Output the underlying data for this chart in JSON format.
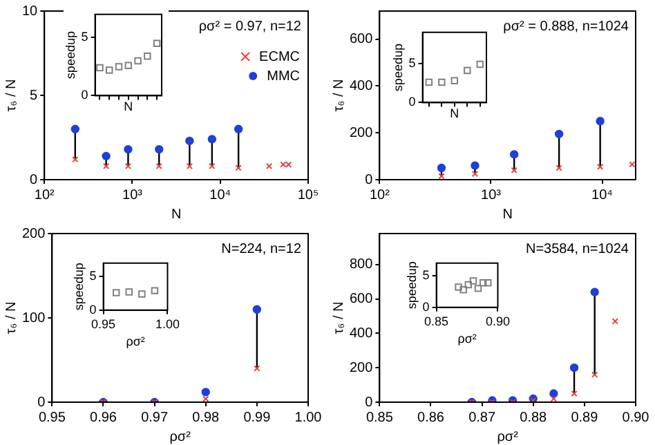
{
  "chart_data": [
    {
      "type": "scatter",
      "xlabel": "N",
      "ylabel": "τ₆ / N",
      "log": "x",
      "xlim": [
        100,
        100000
      ],
      "xticks": [
        {
          "value": 100,
          "label": "10²"
        },
        {
          "value": 1000,
          "label": "10³"
        },
        {
          "value": 10000,
          "label": "10⁴"
        },
        {
          "value": 100000,
          "label": "10⁵"
        }
      ],
      "ylim": [
        0,
        10
      ],
      "yticks": [
        0,
        5,
        10
      ],
      "annotations": [
        "ρσ² = 0.97, n=12"
      ],
      "legend": "top right",
      "series": [
        {
          "name": "ECMC",
          "color": "#e8403c",
          "marker": "cross",
          "x": [
            224,
            504,
            896,
            2016,
            4480,
            8064,
            16128,
            36000,
            52000,
            60000
          ],
          "values": [
            1.2,
            0.8,
            0.8,
            0.8,
            0.8,
            0.8,
            0.7,
            0.8,
            0.9,
            0.9
          ]
        },
        {
          "name": "MMC",
          "color": "#1f3fd8",
          "marker": "circle",
          "x": [
            224,
            504,
            896,
            2016,
            4480,
            8064,
            16128
          ],
          "values": [
            3.0,
            1.4,
            1.8,
            1.8,
            2.3,
            2.4,
            3.0
          ],
          "errors": [
            [
              1.2,
              3.0
            ],
            [
              0.8,
              1.4
            ],
            [
              0.8,
              1.8
            ],
            [
              0.8,
              1.8
            ],
            [
              0.8,
              2.3
            ],
            [
              0.8,
              2.4
            ],
            [
              0.7,
              3.0
            ]
          ]
        }
      ]
    },
    {
      "type": "scatter",
      "xlabel": "N",
      "ylabel": "speedup",
      "categories": [
        null,
        null,
        null,
        null,
        null,
        null,
        null
      ],
      "ylim": [
        0,
        7
      ],
      "yticks": [
        0,
        5
      ],
      "tick_labels": "y",
      "series": [
        {
          "color": "#808080",
          "marker": "square",
          "values": [
            2.4,
            2.2,
            2.5,
            2.6,
            3.0,
            3.4,
            4.5
          ]
        }
      ]
    },
    {
      "type": "scatter",
      "xlabel": "N",
      "ylabel": "τ₆ / N",
      "log": "x",
      "xlim": [
        100,
        20000
      ],
      "xticks": [
        {
          "value": 100,
          "label": "10²"
        },
        {
          "value": 1000,
          "label": "10³"
        },
        {
          "value": 10000,
          "label": "10⁴"
        }
      ],
      "ylim": [
        0,
        720
      ],
      "yticks": [
        0,
        200,
        400,
        600
      ],
      "annotations": [
        "ρσ² = 0.888, n=1024"
      ],
      "series": [
        {
          "color": "#e8403c",
          "marker": "cross",
          "x": [
            360,
            720,
            1620,
            4100,
            9600,
            18600
          ],
          "values": [
            15,
            25,
            40,
            50,
            55,
            65
          ]
        },
        {
          "color": "#1f3fd8",
          "marker": "circle",
          "x": [
            360,
            720,
            1620,
            4100,
            9600
          ],
          "values": [
            50,
            60,
            108,
            195,
            250
          ],
          "errors": [
            [
              15,
              50
            ],
            [
              25,
              60
            ],
            [
              40,
              108
            ],
            [
              50,
              195
            ],
            [
              55,
              250
            ]
          ]
        }
      ]
    },
    {
      "type": "scatter",
      "xlabel": "N",
      "ylabel": "speedup",
      "categories": [
        null,
        null,
        null,
        null,
        null
      ],
      "ylim": [
        0,
        9
      ],
      "yticks": [
        0,
        5
      ],
      "tick_labels": "y",
      "series": [
        {
          "color": "#808080",
          "marker": "square",
          "values": [
            2.6,
            2.6,
            2.8,
            4.1,
            4.9
          ]
        }
      ]
    },
    {
      "type": "scatter",
      "xlabel": "ρσ²",
      "ylabel": "τ₆ / N",
      "xlim": [
        0.95,
        1.0
      ],
      "xticks": [
        0.95,
        0.96,
        0.97,
        0.98,
        0.99,
        {
          "value": 1.0,
          "label": "1.00"
        }
      ],
      "ylim": [
        0,
        200
      ],
      "yticks": [
        0,
        100,
        200
      ],
      "annotations": [
        "N=224, n=12"
      ],
      "series": [
        {
          "color": "#e8403c",
          "marker": "cross",
          "x": [
            0.96,
            0.97,
            0.98,
            0.99
          ],
          "values": [
            0,
            0,
            4,
            40
          ]
        },
        {
          "color": "#1f3fd8",
          "marker": "circle",
          "x": [
            0.96,
            0.97,
            0.98,
            0.99
          ],
          "values": [
            0,
            0,
            12,
            110
          ],
          "errors": [
            null,
            null,
            null,
            [
              40,
              110
            ]
          ]
        }
      ]
    },
    {
      "type": "scatter",
      "xlabel": "ρσ²",
      "ylabel": "speedup",
      "xlim": [
        0.95,
        1.0
      ],
      "xticks": [
        0.95,
        {
          "value": 1.0,
          "label": "1.00"
        }
      ],
      "ylim": [
        0,
        7
      ],
      "yticks": [
        0,
        5
      ],
      "series": [
        {
          "color": "#808080",
          "marker": "square",
          "x": [
            0.96,
            0.97,
            0.98,
            0.99
          ],
          "values": [
            2.6,
            2.7,
            2.4,
            2.9
          ]
        }
      ]
    },
    {
      "type": "scatter",
      "xlabel": "ρσ²",
      "ylabel": "τ₆ / N",
      "xlim": [
        0.85,
        0.9
      ],
      "xticks": [
        0.85,
        0.86,
        0.87,
        0.88,
        0.89,
        {
          "value": 0.9,
          "label": "0.90"
        }
      ],
      "ylim": [
        0,
        980
      ],
      "yticks": [
        0,
        200,
        400,
        600,
        800
      ],
      "annotations": [
        "N=3584, n=1024"
      ],
      "series": [
        {
          "color": "#e8403c",
          "marker": "cross",
          "x": [
            0.868,
            0.872,
            0.876,
            0.88,
            0.884,
            0.888,
            0.892,
            0.896
          ],
          "values": [
            0,
            0,
            0,
            10,
            20,
            50,
            160,
            470
          ]
        },
        {
          "color": "#1f3fd8",
          "marker": "circle",
          "x": [
            0.868,
            0.872,
            0.876,
            0.88,
            0.884,
            0.888,
            0.892
          ],
          "values": [
            0,
            10,
            10,
            20,
            50,
            200,
            640
          ],
          "errors": [
            [
              0,
              0
            ],
            [
              0,
              10
            ],
            [
              0,
              10
            ],
            [
              10,
              20
            ],
            [
              20,
              50
            ],
            [
              50,
              200
            ],
            [
              160,
              640
            ]
          ]
        }
      ]
    },
    {
      "type": "scatter",
      "xlabel": "ρσ²",
      "ylabel": "speedup",
      "xlim": [
        0.85,
        0.9
      ],
      "xticks": [
        0.85,
        {
          "value": 0.9,
          "label": "0.90"
        }
      ],
      "ylim": [
        0,
        7
      ],
      "yticks": [
        0,
        5
      ],
      "series": [
        {
          "color": "#808080",
          "marker": "square",
          "x": [
            0.868,
            0.872,
            0.876,
            0.88,
            0.884,
            0.888,
            0.892
          ],
          "values": [
            3.2,
            2.8,
            3.6,
            4.2,
            3.0,
            3.9,
            3.9
          ]
        }
      ]
    }
  ]
}
